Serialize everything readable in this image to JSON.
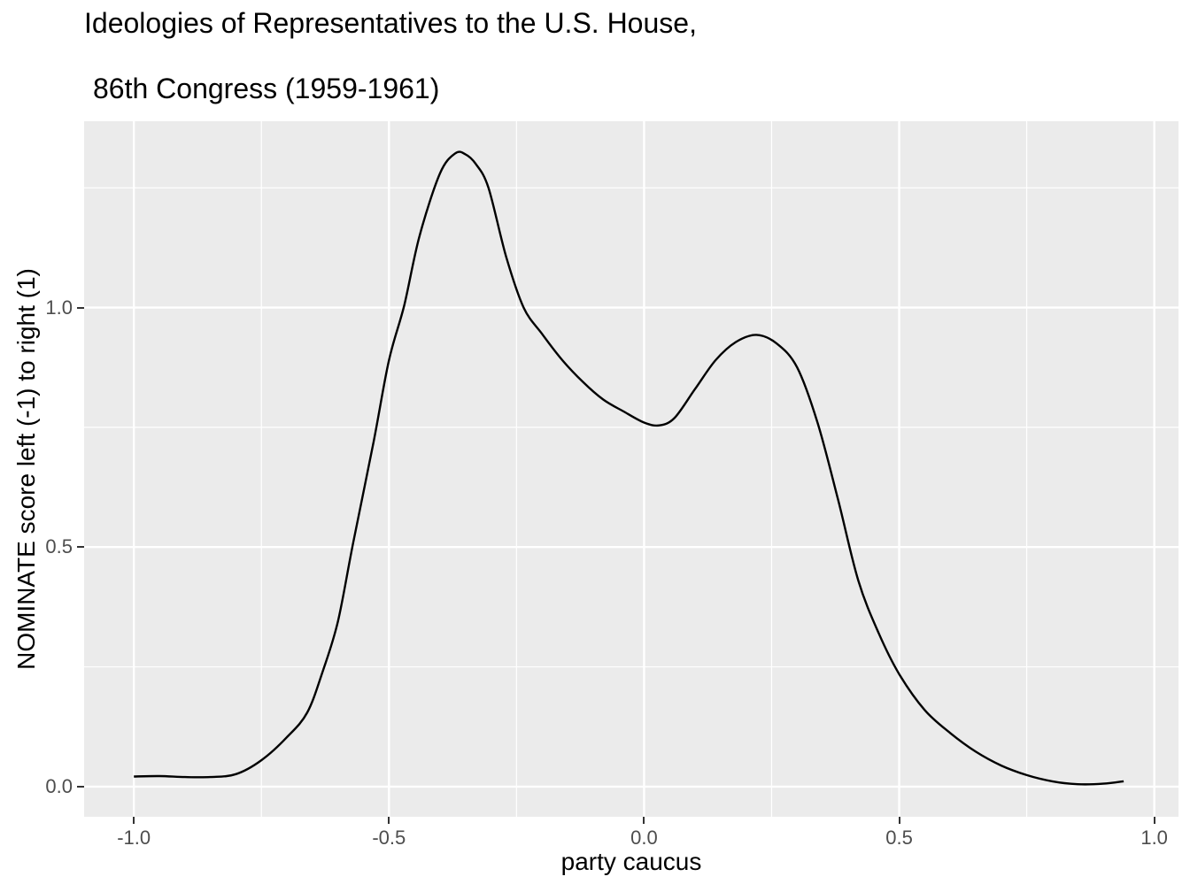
{
  "chart_data": {
    "type": "line",
    "kind": "kernel-density-curve",
    "title": "Ideologies of Representatives to the U.S. House,",
    "subtitle": "86th Congress (1959-1961)",
    "xlabel": "party caucus",
    "ylabel": "NOMINATE score left (-1) to right (1)",
    "x_ticks": {
      "values": [
        -1.0,
        -0.5,
        0.0,
        0.5,
        1.0
      ],
      "labels": [
        "-1.0",
        "-0.5",
        "0.0",
        "0.5",
        "1.0"
      ]
    },
    "y_ticks": {
      "values": [
        0.0,
        0.5,
        1.0
      ],
      "labels": [
        "0.0",
        "0.5",
        "1.0"
      ]
    },
    "x_minor": [
      -0.75,
      -0.25,
      0.25,
      0.75
    ],
    "y_minor": [
      0.25,
      0.75,
      1.25
    ],
    "xlim": [
      -1.0975,
      1.0475
    ],
    "ylim": [
      -0.063,
      1.389
    ],
    "grid": "major-and-minor-white-on-grey",
    "legend": "none",
    "series": [
      {
        "name": "density",
        "x": [
          -1.0,
          -0.95,
          -0.9,
          -0.85,
          -0.8,
          -0.75,
          -0.7,
          -0.66,
          -0.63,
          -0.6,
          -0.57,
          -0.53,
          -0.5,
          -0.47,
          -0.44,
          -0.4,
          -0.37,
          -0.35,
          -0.33,
          -0.305,
          -0.27,
          -0.236,
          -0.2,
          -0.16,
          -0.12,
          -0.08,
          -0.04,
          0.0,
          0.03,
          0.06,
          0.1,
          0.14,
          0.18,
          0.22,
          0.26,
          0.3,
          0.34,
          0.38,
          0.42,
          0.46,
          0.5,
          0.55,
          0.6,
          0.65,
          0.7,
          0.75,
          0.8,
          0.85,
          0.9,
          0.94
        ],
        "y": [
          0.021,
          0.022,
          0.02,
          0.02,
          0.026,
          0.055,
          0.103,
          0.155,
          0.24,
          0.345,
          0.51,
          0.72,
          0.89,
          1.005,
          1.15,
          1.28,
          1.322,
          1.32,
          1.3,
          1.25,
          1.105,
          1.0,
          0.945,
          0.89,
          0.845,
          0.808,
          0.783,
          0.76,
          0.754,
          0.77,
          0.83,
          0.89,
          0.928,
          0.943,
          0.925,
          0.875,
          0.76,
          0.6,
          0.43,
          0.32,
          0.235,
          0.16,
          0.112,
          0.073,
          0.044,
          0.024,
          0.011,
          0.005,
          0.006,
          0.011
        ]
      }
    ]
  },
  "style": {
    "figure_bg": "#FFFFFF",
    "panel_bg": "#EBEBEB",
    "grid_color": "#FFFFFF",
    "line_color": "#000000",
    "tick_label_color": "#4D4D4D",
    "tick_mark_color": "#333333",
    "axis_title_color": "#000000",
    "title_color": "#000000"
  }
}
